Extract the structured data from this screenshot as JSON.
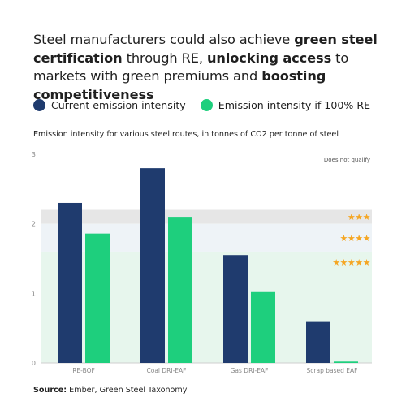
{
  "title": {
    "p1": "Steel manufacturers could also achieve ",
    "b1": "green steel certification",
    "p2": " through RE, ",
    "b2": "unlocking access",
    "p3": " to markets with green premiums and ",
    "b3": "boosting competitiveness"
  },
  "legend": {
    "current": "Current emission intensity",
    "re": "Emission intensity if 100% RE"
  },
  "subtitle": "Emission intensity for various steel routes, in tonnes of CO2 per tonne of steel",
  "source": {
    "label": "Source:",
    "text": "Ember, Green Steel Taxonomy"
  },
  "colors": {
    "current": "#1f3b6e",
    "re": "#1ecf7d",
    "star": "#f5a623",
    "band_grey": "#e6e6e6",
    "band_blue": "#eef3f7",
    "band_green": "#e7f6ed"
  },
  "chart_data": {
    "type": "bar",
    "categories": [
      "RE-BOF",
      "Coal DRI-EAF",
      "Gas DRI-EAF",
      "Scrap based EAF"
    ],
    "series": [
      {
        "name": "Current emission intensity",
        "values": [
          2.3,
          2.8,
          1.55,
          0.6
        ]
      },
      {
        "name": "Emission intensity if 100% RE",
        "values": [
          1.86,
          2.1,
          1.03,
          0.02
        ]
      }
    ],
    "ylim": [
      0,
      3
    ],
    "yticks": [
      "0",
      "1",
      "2",
      "3"
    ],
    "thresholds": [
      {
        "label": "Does not qualify",
        "from": 2.2,
        "to": 3.0
      },
      {
        "label": "★★★",
        "from": 2.0,
        "to": 2.2
      },
      {
        "label": "★★★★",
        "from": 1.6,
        "to": 2.0
      },
      {
        "label": "★★★★★",
        "from": 0,
        "to": 1.6
      }
    ]
  }
}
